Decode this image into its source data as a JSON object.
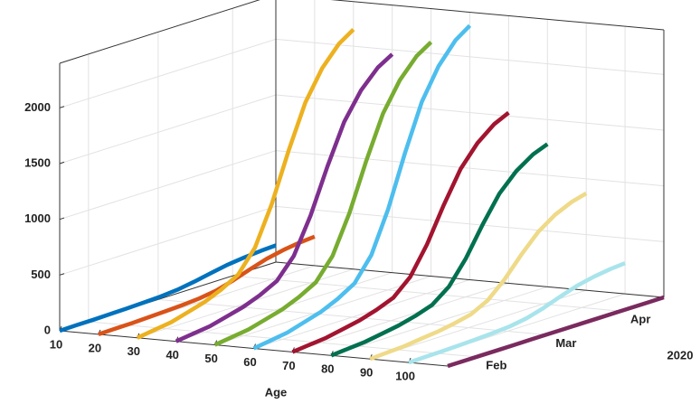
{
  "chart_data": {
    "type": "line3d",
    "x_label": "Age",
    "y_label": "2020",
    "xlim": [
      10,
      110
    ],
    "xticks": [
      10,
      20,
      30,
      40,
      50,
      60,
      70,
      80,
      90,
      100
    ],
    "ylim": [
      20,
      110
    ],
    "yticks": [
      {
        "value": 32,
        "label": "Feb"
      },
      {
        "value": 61,
        "label": "Mar"
      },
      {
        "value": 92,
        "label": "Apr"
      }
    ],
    "zlim": [
      0,
      2400
    ],
    "zticks": [
      0,
      500,
      1000,
      1500,
      2000
    ],
    "grid": true,
    "days": [
      20,
      27,
      34,
      41,
      48,
      55,
      62,
      69,
      76,
      83,
      90,
      97,
      104,
      110
    ],
    "series": [
      {
        "x": 10,
        "color": "#0072bd",
        "values": [
          0,
          2,
          3,
          6,
          9,
          14,
          20,
          33,
          57,
          87,
          114,
          132,
          144,
          150
        ]
      },
      {
        "x": 20,
        "color": "#d95319",
        "values": [
          0,
          3,
          5,
          10,
          16,
          23,
          34,
          57,
          99,
          151,
          198,
          229,
          250,
          260
        ]
      },
      {
        "x": 30,
        "color": "#edb120",
        "values": [
          0,
          22,
          43,
          86,
          129,
          194,
          280,
          473,
          817,
          1247,
          1634,
          1892,
          2064,
          2150
        ]
      },
      {
        "x": 40,
        "color": "#7e2f8e",
        "values": [
          0,
          20,
          39,
          78,
          118,
          176,
          255,
          431,
          745,
          1137,
          1490,
          1725,
          1882,
          1960
        ]
      },
      {
        "x": 50,
        "color": "#77ac30",
        "values": [
          0,
          21,
          42,
          84,
          126,
          189,
          273,
          462,
          798,
          1218,
          1596,
          1848,
          2016,
          2100
        ]
      },
      {
        "x": 60,
        "color": "#4dbeee",
        "values": [
          0,
          23,
          46,
          91,
          137,
          205,
          296,
          502,
          866,
          1322,
          1733,
          2006,
          2189,
          2280
        ]
      },
      {
        "x": 70,
        "color": "#a2142f",
        "values": [
          0,
          15,
          31,
          61,
          92,
          138,
          199,
          337,
          581,
          887,
          1163,
          1346,
          1469,
          1530
        ]
      },
      {
        "x": 80,
        "color": "#00704f",
        "values": [
          0,
          13,
          26,
          51,
          77,
          115,
          166,
          282,
          486,
          742,
          973,
          1126,
          1229,
          1280
        ]
      },
      {
        "x": 90,
        "color": "#efda88",
        "values": [
          0,
          9,
          17,
          35,
          52,
          78,
          113,
          191,
          331,
          505,
          661,
          766,
          835,
          870
        ]
      },
      {
        "x": 100,
        "color": "#a8e4ec",
        "values": [
          0,
          3,
          6,
          11,
          17,
          25,
          36,
          61,
          105,
          160,
          209,
          242,
          264,
          275
        ]
      },
      {
        "x": 110,
        "color": "#7a2a5e",
        "values": [
          0,
          0,
          0,
          0,
          0,
          0,
          0,
          0,
          0,
          0,
          0,
          0,
          0,
          0
        ]
      }
    ]
  }
}
